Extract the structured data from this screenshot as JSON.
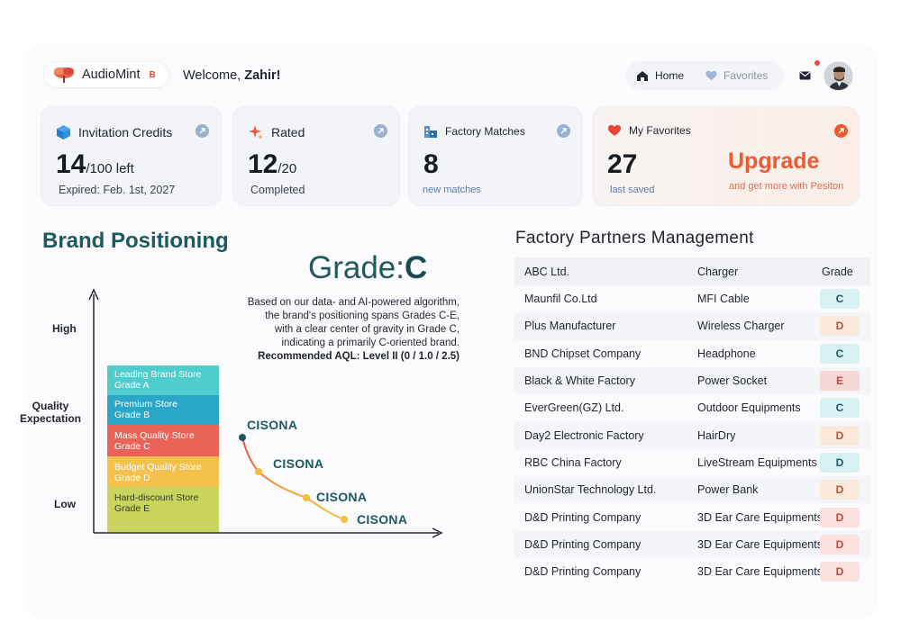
{
  "header": {
    "app_name": "AudioMint",
    "app_badge": "B",
    "welcome_prefix": "Welcome, ",
    "welcome_user": "Zahir!",
    "nav_home": "Home",
    "nav_favorites": "Favorites"
  },
  "cards": {
    "credits": {
      "title": "Invitation Credits",
      "value": "14",
      "suffix": "/100 left",
      "note": "Expired: Feb. 1st, 2027"
    },
    "rated": {
      "title": "Rated",
      "value": "12",
      "suffix": "/20",
      "note": "Completed"
    },
    "matches": {
      "title": "Factory Matches",
      "value": "8",
      "note": "new matches"
    },
    "favorites": {
      "title": "My Favorites",
      "value": "27",
      "note": "last saved",
      "upgrade": "Upgrade",
      "upgrade_note": "and get more with Pesiton"
    }
  },
  "brand": {
    "title": "Brand Positioning",
    "grade_prefix": "Grade:",
    "grade_letter": "C",
    "desc_lines": [
      "Based on our data- and AI-powered algorithm,",
      "the brand's positioning spans Grades C-E,",
      "with a clear center of gravity in Grade C,",
      "indicating a primarily C-oriented brand."
    ],
    "aql": "Recommended AQL: Level II (0 / 1.0 / 2.5)",
    "axis_high": "High",
    "axis_quality_1": "Quality",
    "axis_quality_2": "Expectation",
    "axis_low": "Low",
    "tiers": [
      {
        "name": "Leading Brand Store",
        "grade": "Grade A"
      },
      {
        "name": "Premium Store",
        "grade": "Grade B"
      },
      {
        "name": "Mass Quality Store",
        "grade": "Grade C"
      },
      {
        "name": "Budget Quality Store",
        "grade": "Grade D"
      },
      {
        "name": "Hard-discount Store",
        "grade": "Grade E"
      }
    ],
    "points": [
      "CISONA",
      "CISONA",
      "CISONA",
      "CISONA"
    ]
  },
  "factory": {
    "title": "Factory Partners Management",
    "columns": [
      "ABC Ltd.",
      "Charger",
      "Grade"
    ],
    "rows": [
      {
        "name": "Maunfil Co.Ltd",
        "charger": "MFI Cable",
        "grade": "C"
      },
      {
        "name": "Plus Manufacturer",
        "charger": "Wireless Charger",
        "grade": "D"
      },
      {
        "name": "BND Chipset Company",
        "charger": "Headphone",
        "grade": "C"
      },
      {
        "name": "Black & White Factory",
        "charger": "Power Socket",
        "grade": "E"
      },
      {
        "name": "EverGreen(GZ) Ltd.",
        "charger": "Outdoor Equipments",
        "grade": "C"
      },
      {
        "name": "Day2 Electronic Factory",
        "charger": "HairDry",
        "grade": "D"
      },
      {
        "name": "RBC China Factory",
        "charger": "LiveStream Equipments",
        "grade": "D"
      },
      {
        "name": "UnionStar Technology Ltd.",
        "charger": "Power Bank",
        "grade": "D"
      },
      {
        "name": "D&D Printing Company",
        "charger": "3D Ear Care Equipments",
        "grade": "D"
      },
      {
        "name": "D&D Printing Company",
        "charger": "3D Ear Care Equipments",
        "grade": "D"
      },
      {
        "name": "D&D Printing Company",
        "charger": "3D Ear Care Equipments",
        "grade": "D"
      }
    ]
  },
  "colors": {
    "accent_teal": "#1c5960",
    "upgrade_orange": "#ed5a33"
  }
}
